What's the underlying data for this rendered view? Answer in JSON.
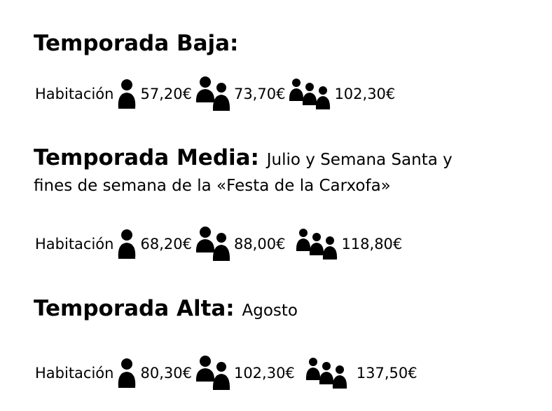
{
  "seasons": [
    {
      "title": "Temporada Baja:",
      "note": "",
      "note2": "",
      "label": "Habitación",
      "prices": [
        "57,20€",
        "73,70€",
        "102,30€"
      ]
    },
    {
      "title": "Temporada Media:",
      "note": "Julio y Semana Santa y",
      "note2": "fines de semana de la «Festa de la Carxofa»",
      "label": "Habitación",
      "prices": [
        "68,20€",
        "88,00€",
        "118,80€"
      ]
    },
    {
      "title": "Temporada Alta:",
      "note": "Agosto",
      "note2": "",
      "label": "Habitación",
      "prices": [
        "80,30€",
        "102,30€",
        "137,50€"
      ]
    }
  ],
  "icons": [
    "one-person-icon",
    "two-persons-icon",
    "three-persons-icon"
  ]
}
